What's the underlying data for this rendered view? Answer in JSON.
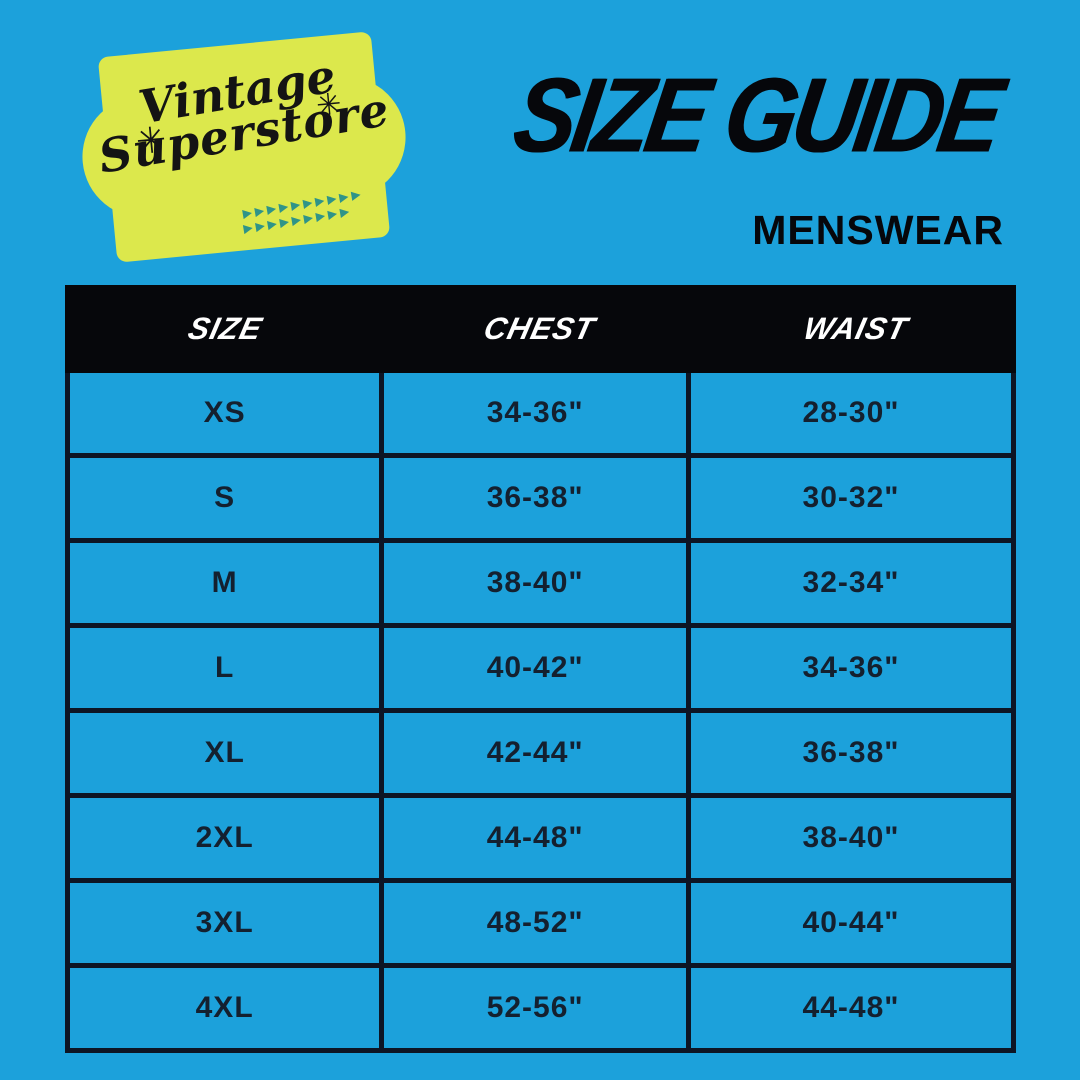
{
  "canvas": {
    "background": "#1CA1DB"
  },
  "logo": {
    "line1": "Vintage",
    "line2": "Superstore",
    "badge_color": "#DCE84C",
    "text_color": "#141414",
    "arrow_color": "#2F9488",
    "sparkle_left": "✳",
    "sparkle_right": "✳",
    "arrows_row1": "▶▶▶▶▶▶▶▶▶▶",
    "arrows_row2": "▶▶▶▶▶▶▶▶▶"
  },
  "header": {
    "title": "SIZE GUIDE",
    "subtitle": "MENSWEAR",
    "text_color": "#06070B"
  },
  "size_table": {
    "header_bg": "#06070B",
    "header_text_color": "#FFFFFF",
    "border_color": "#0D1524",
    "cell_text_color": "#14202F",
    "columns": [
      "SIZE",
      "CHEST",
      "WAIST"
    ],
    "rows": [
      [
        "XS",
        "34-36\"",
        "28-30\""
      ],
      [
        "S",
        "36-38\"",
        "30-32\""
      ],
      [
        "M",
        "38-40\"",
        "32-34\""
      ],
      [
        "L",
        "40-42\"",
        "34-36\""
      ],
      [
        "XL",
        "42-44\"",
        "36-38\""
      ],
      [
        "2XL",
        "44-48\"",
        "38-40\""
      ],
      [
        "3XL",
        "48-52\"",
        "40-44\""
      ],
      [
        "4XL",
        "52-56\"",
        "44-48\""
      ]
    ]
  }
}
